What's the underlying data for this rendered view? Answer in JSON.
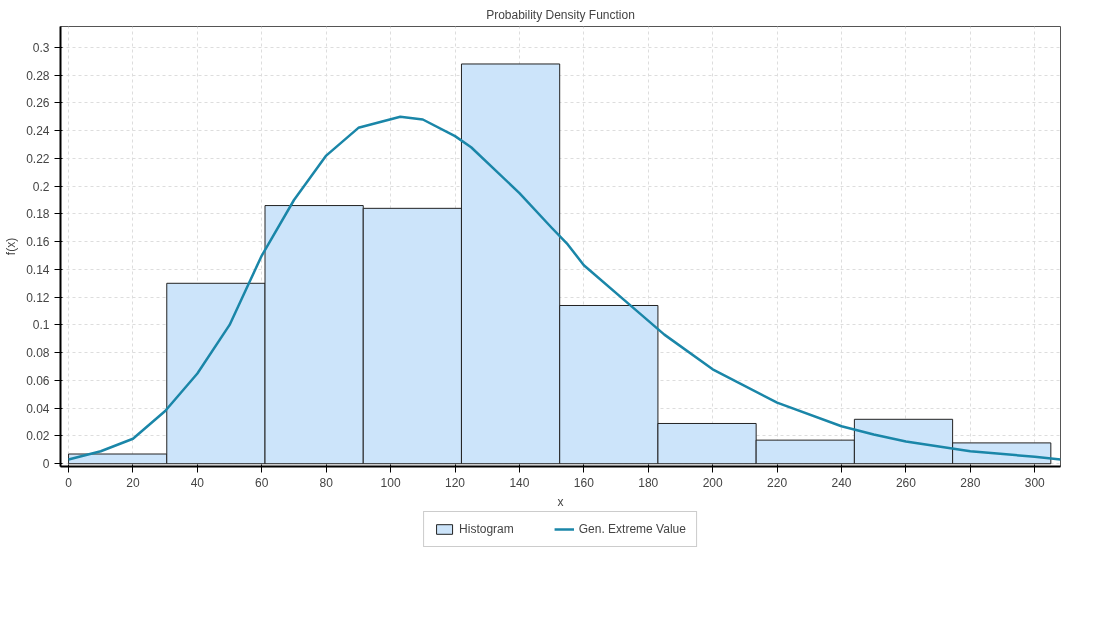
{
  "chart_data": {
    "type": "histogram",
    "title": "Probability Density Function",
    "xlabel": "x",
    "ylabel": "f(x)",
    "bins": [
      0,
      30.5,
      61,
      91.5,
      122,
      152.5,
      183,
      213.5,
      244,
      274.5,
      305
    ],
    "series": [
      {
        "name": "Histogram",
        "type": "histogram",
        "color": "#cce4fa",
        "values": [
          0.007,
          0.13,
          0.186,
          0.184,
          0.288,
          0.114,
          0.029,
          0.017,
          0.032,
          0.015
        ]
      },
      {
        "name": "Gen. Extreme Value",
        "type": "line",
        "color": "#1a86a8",
        "x": [
          0,
          10,
          20,
          30,
          40,
          50,
          56,
          60,
          70,
          80,
          90,
          103,
          110,
          120,
          125,
          140,
          150,
          155,
          160,
          175,
          185,
          200,
          220,
          240,
          250,
          260,
          280,
          300,
          308
        ],
        "values": [
          0.003,
          0.009,
          0.018,
          0.038,
          0.065,
          0.1,
          0.13,
          0.15,
          0.19,
          0.222,
          0.242,
          0.25,
          0.248,
          0.236,
          0.228,
          0.195,
          0.17,
          0.158,
          0.143,
          0.113,
          0.093,
          0.068,
          0.044,
          0.027,
          0.021,
          0.016,
          0.009,
          0.005,
          0.003
        ]
      }
    ],
    "xlim": [
      -2.5,
      308
    ],
    "ylim": [
      -0.002,
      0.315
    ],
    "xticks": [
      0,
      20,
      40,
      60,
      80,
      100,
      120,
      140,
      160,
      180,
      200,
      220,
      240,
      260,
      280,
      300
    ],
    "yticks": [
      0,
      0.02,
      0.04,
      0.06,
      0.08,
      0.1,
      0.12,
      0.14,
      0.16,
      0.18,
      0.2,
      0.22,
      0.24,
      0.26,
      0.28,
      0.3
    ],
    "grid": true,
    "legend": "bottom",
    "marker": "none",
    "line_style": "solid"
  }
}
